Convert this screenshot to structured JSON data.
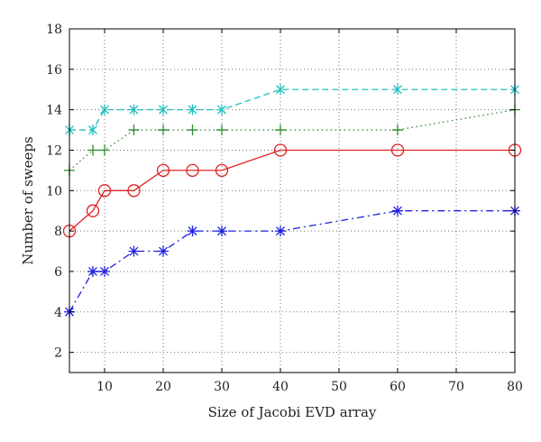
{
  "chart_data": {
    "type": "line",
    "title": "",
    "xlabel": "Size of Jacobi EVD array",
    "ylabel": "Number of sweeps",
    "xlim": [
      4,
      80
    ],
    "ylim": [
      1,
      18
    ],
    "xticks": [
      10,
      20,
      30,
      40,
      50,
      60,
      70,
      80
    ],
    "yticks": [
      2,
      4,
      6,
      8,
      10,
      12,
      14,
      16,
      18
    ],
    "grid": true,
    "x": [
      4,
      8,
      10,
      15,
      20,
      25,
      30,
      40,
      60,
      80
    ],
    "series": [
      {
        "color": "#20c0c0",
        "marker": "x-star",
        "line_style": "dashed",
        "values": [
          13,
          13,
          14,
          14,
          14,
          14,
          14,
          15,
          15,
          15
        ]
      },
      {
        "color": "#2e8b2e",
        "marker": "plus",
        "line_style": "dotted",
        "values": [
          11,
          12,
          12,
          13,
          13,
          13,
          13,
          13,
          13,
          14
        ]
      },
      {
        "color": "#e02020",
        "marker": "circle",
        "line_style": "solid",
        "values": [
          8,
          9,
          10,
          10,
          11,
          11,
          11,
          12,
          12,
          12
        ]
      },
      {
        "color": "#2020e0",
        "marker": "asterisk",
        "line_style": "dash-dot",
        "values": [
          4,
          6,
          6,
          7,
          7,
          8,
          8,
          8,
          9,
          9
        ]
      }
    ]
  }
}
